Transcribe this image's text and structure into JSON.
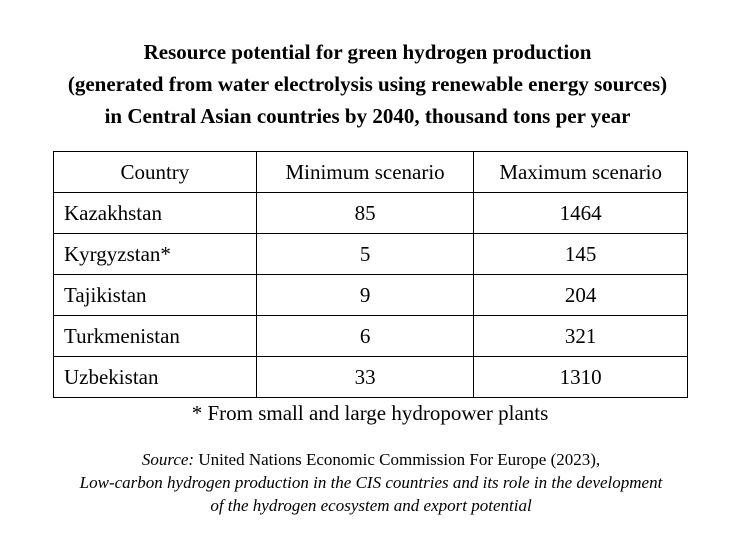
{
  "title": {
    "line1": "Resource potential for green hydrogen production",
    "line2": "(generated from water electrolysis using renewable energy sources)",
    "line3": "in Central Asian countries by 2040, thousand tons per year"
  },
  "table": {
    "headers": [
      "Country",
      "Minimum scenario",
      "Maximum scenario"
    ],
    "rows": [
      {
        "country": "Kazakhstan",
        "min": "85",
        "max": "1464"
      },
      {
        "country": "Kyrgyzstan*",
        "min": "5",
        "max": "145"
      },
      {
        "country": "Tajikistan",
        "min": "9",
        "max": "204"
      },
      {
        "country": "Turkmenistan",
        "min": "6",
        "max": "321"
      },
      {
        "country": "Uzbekistan",
        "min": "33",
        "max": "1310"
      }
    ]
  },
  "footnote": "* From small and large hydropower plants",
  "source": {
    "label": "Source:",
    "org": " United Nations Economic Commission For Europe (2023),",
    "line2": "Low-carbon hydrogen production in the CIS countries and its role in the development",
    "line3": "of the hydrogen ecosystem and export potential"
  }
}
